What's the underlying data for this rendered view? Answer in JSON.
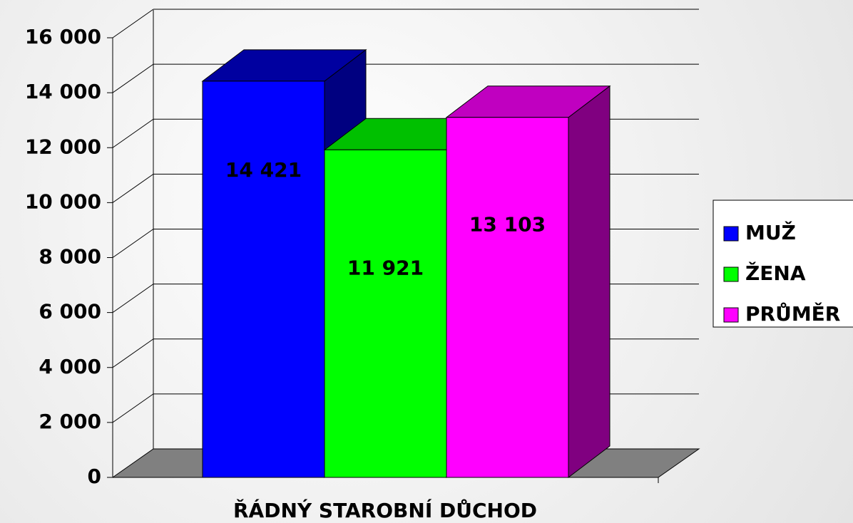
{
  "chart_data": {
    "type": "bar3d",
    "categories": [
      "ŘÁDNÝ STAROBNÍ DŮCHOD"
    ],
    "series": [
      {
        "name": "MUŽ",
        "color": "#0000ff",
        "side_color": "#000080",
        "top_color": "#0000a0",
        "values": [
          14421
        ],
        "value_labels": [
          "14 421"
        ]
      },
      {
        "name": "ŽENA",
        "color": "#00ff00",
        "side_color": "#008000",
        "top_color": "#00c000",
        "values": [
          11921
        ],
        "value_labels": [
          "11 921"
        ]
      },
      {
        "name": "PRŮMĚR",
        "color": "#ff00ff",
        "side_color": "#800080",
        "top_color": "#c000c0",
        "values": [
          13103
        ],
        "value_labels": [
          "13 103"
        ]
      }
    ],
    "ylim": [
      0,
      16000
    ],
    "yticks": [
      0,
      {
        "value": 2000,
        "label": "2 000"
      },
      {
        "value": 4000,
        "label": "4 000"
      },
      {
        "value": 6000,
        "label": "6 000"
      },
      {
        "value": 8000,
        "label": "8 000"
      },
      {
        "value": 10000,
        "label": "10 000"
      },
      {
        "value": 12000,
        "label": "12 000"
      },
      {
        "value": 14000,
        "label": "14 000"
      },
      {
        "value": 16000,
        "label": "16 000"
      }
    ],
    "grid": true,
    "legend": "right"
  }
}
